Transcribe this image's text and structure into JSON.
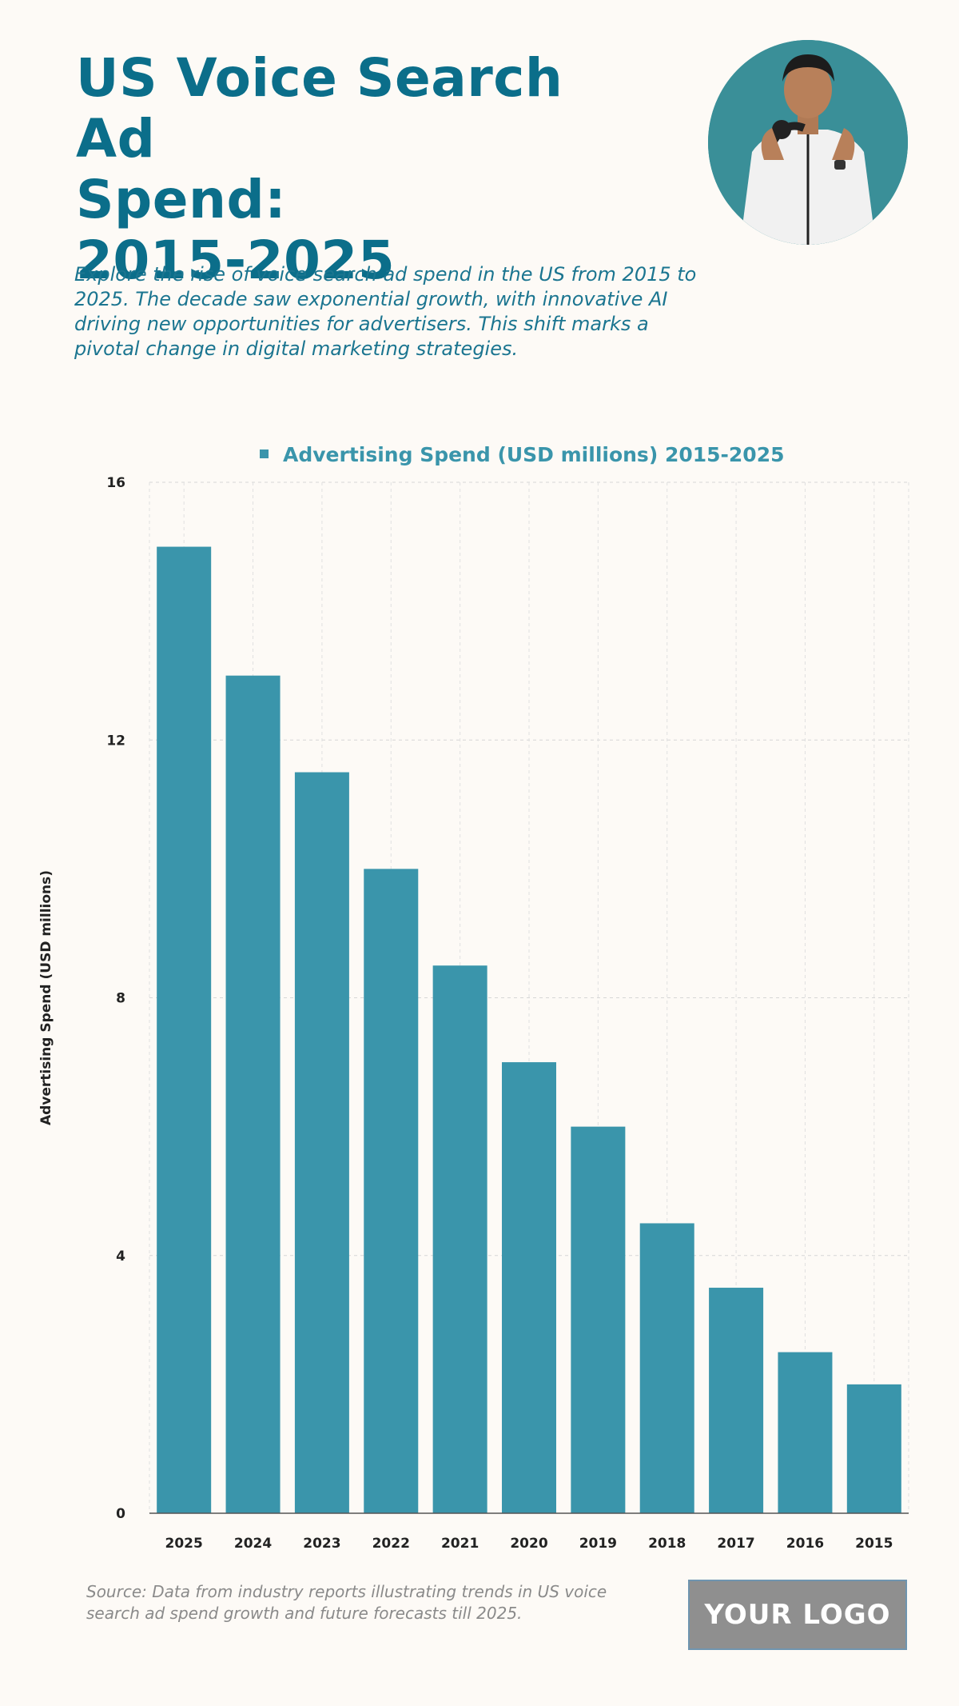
{
  "header": {
    "title_lines": [
      "US Voice Search Ad",
      "Spend:",
      "2015-2025"
    ],
    "description": "Explore the rise of voice search ad spend in the US from 2015 to 2025. The decade saw exponential growth, with innovative AI driving new opportunities for advertisers. This shift marks a pivotal change in digital marketing strategies."
  },
  "footer": {
    "source": "Source: Data from industry reports illustrating trends in US voice search ad spend growth and future forecasts till 2025.",
    "logo_text": "YOUR LOGO"
  },
  "colors": {
    "title": "#0b6e8a",
    "bar": "#3a95ab",
    "avatar_bg": "#3a8f98"
  },
  "chart_data": {
    "type": "bar",
    "title": "",
    "series": [
      {
        "name": "Advertising Spend (USD millions) 2015-2025",
        "values": [
          15,
          13,
          11.5,
          10,
          8.5,
          7,
          6,
          4.5,
          3.5,
          2.5,
          2
        ]
      }
    ],
    "categories": [
      "2025",
      "2024",
      "2023",
      "2022",
      "2021",
      "2020",
      "2019",
      "2018",
      "2017",
      "2016",
      "2015"
    ],
    "xlabel": "",
    "ylabel": "Advertising Spend (USD millions)",
    "ylim": [
      0,
      16
    ],
    "yticks": [
      0,
      4,
      8,
      12,
      16
    ],
    "grid": true,
    "legend_position": "top-center"
  }
}
